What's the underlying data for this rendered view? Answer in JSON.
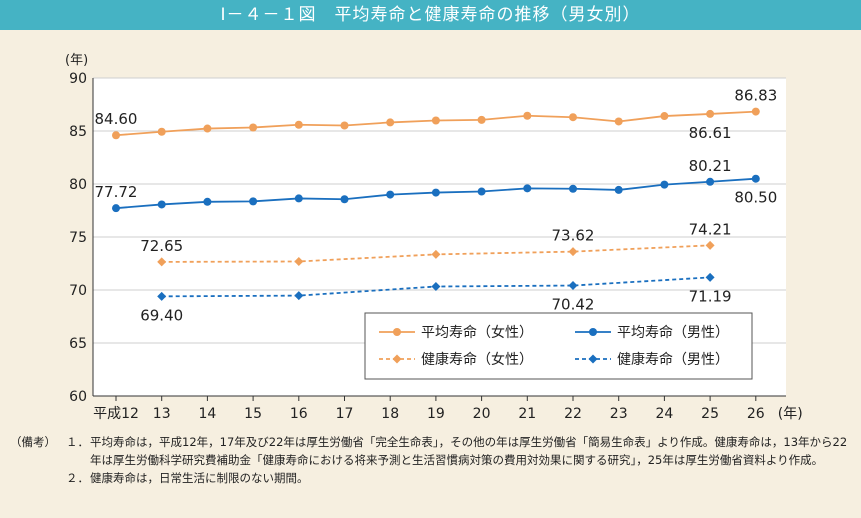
{
  "header": {
    "title": "Ⅰ－４－１図　平均寿命と健康寿命の推移（男女別）"
  },
  "chart_data": {
    "type": "line",
    "title": "Ⅰ－４－１図　平均寿命と健康寿命の推移（男女別）",
    "ylabel": "(年)",
    "xlabel": "(年)",
    "ylim": [
      60,
      90
    ],
    "yticks": [
      "60",
      "65",
      "70",
      "75",
      "80",
      "85",
      "90"
    ],
    "categories": [
      "平成12",
      "13",
      "14",
      "15",
      "16",
      "17",
      "18",
      "19",
      "20",
      "21",
      "22",
      "23",
      "24",
      "25",
      "26"
    ],
    "grid": "horizontal",
    "legend_position": "bottom-right",
    "series": [
      {
        "name": "平均寿命（女性）",
        "color": "#f0a05a",
        "dash": false,
        "marker": "circle",
        "values": [
          84.6,
          84.93,
          85.23,
          85.33,
          85.59,
          85.52,
          85.81,
          85.99,
          86.05,
          86.44,
          86.3,
          85.9,
          86.41,
          86.61,
          86.83
        ]
      },
      {
        "name": "平均寿命（男性）",
        "color": "#1a6fbf",
        "dash": false,
        "marker": "circle",
        "values": [
          77.72,
          78.07,
          78.32,
          78.36,
          78.64,
          78.56,
          79.0,
          79.19,
          79.29,
          79.59,
          79.55,
          79.44,
          79.94,
          80.21,
          80.5
        ]
      },
      {
        "name": "健康寿命（女性）",
        "color": "#f0a05a",
        "dash": true,
        "marker": "diamond",
        "values": [
          null,
          72.65,
          null,
          null,
          72.69,
          null,
          null,
          73.36,
          null,
          null,
          73.62,
          null,
          null,
          74.21,
          null
        ]
      },
      {
        "name": "健康寿命（男性）",
        "color": "#1a6fbf",
        "dash": true,
        "marker": "diamond",
        "values": [
          null,
          69.4,
          null,
          null,
          69.47,
          null,
          null,
          70.33,
          null,
          null,
          70.42,
          null,
          null,
          71.19,
          null
        ]
      }
    ],
    "data_labels": [
      {
        "series": 0,
        "index": 0,
        "text": "84.60",
        "pos": "above"
      },
      {
        "series": 0,
        "index": 14,
        "text": "86.83",
        "pos": "above"
      },
      {
        "series": 0,
        "index": 13,
        "text": "86.61",
        "pos": "below"
      },
      {
        "series": 1,
        "index": 0,
        "text": "77.72",
        "pos": "above"
      },
      {
        "series": 1,
        "index": 13,
        "text": "80.21",
        "pos": "above"
      },
      {
        "series": 1,
        "index": 14,
        "text": "80.50",
        "pos": "below"
      },
      {
        "series": 2,
        "index": 1,
        "text": "72.65",
        "pos": "above"
      },
      {
        "series": 2,
        "index": 10,
        "text": "73.62",
        "pos": "above"
      },
      {
        "series": 2,
        "index": 13,
        "text": "74.21",
        "pos": "above"
      },
      {
        "series": 3,
        "index": 1,
        "text": "69.40",
        "pos": "below"
      },
      {
        "series": 3,
        "index": 10,
        "text": "70.42",
        "pos": "below"
      },
      {
        "series": 3,
        "index": 13,
        "text": "71.19",
        "pos": "below"
      }
    ]
  },
  "notes": {
    "head": "（備考）",
    "items": [
      {
        "num": "１．",
        "text": "平均寿命は，平成12年，17年及び22年は厚生労働省「完全生命表」，その他の年は厚生労働省「簡易生命表」より作成。健康寿命は，13年から22年は厚生労働科学研究費補助金「健康寿命における将来予測と生活習慣病対策の費用対効果に関する研究」，25年は厚生労働省資料より作成。"
      },
      {
        "num": "２．",
        "text": "健康寿命は，日常生活に制限のない期間。"
      }
    ]
  }
}
